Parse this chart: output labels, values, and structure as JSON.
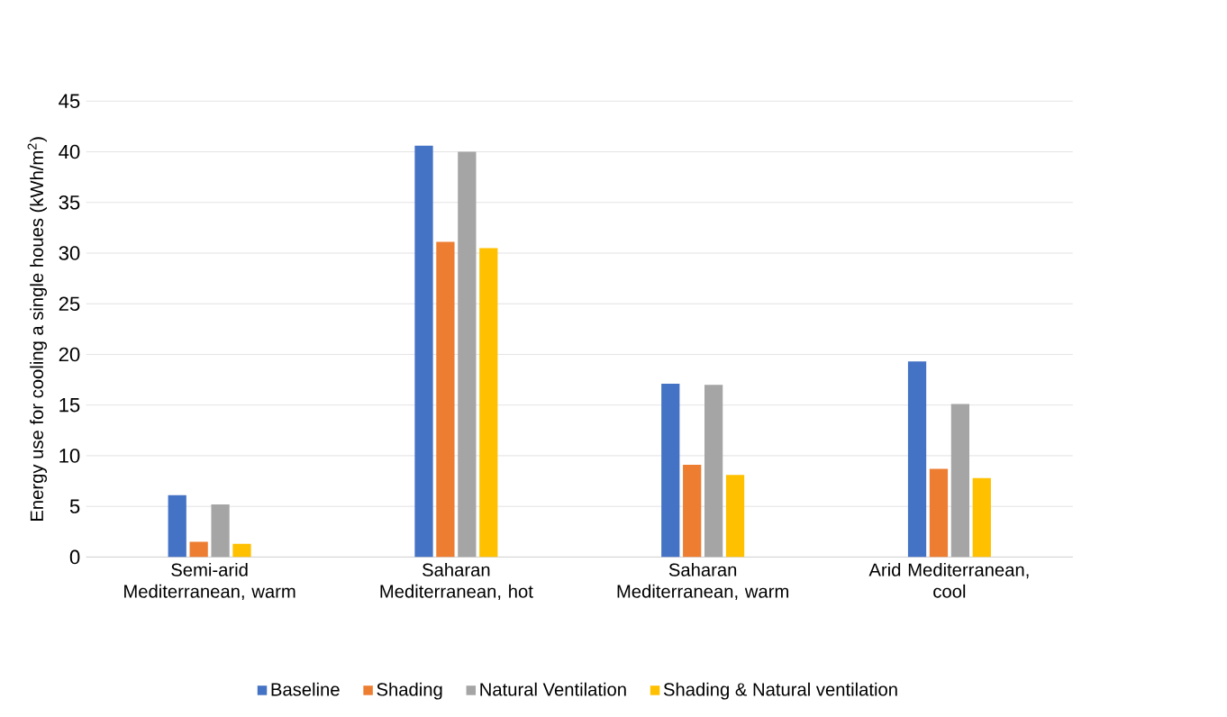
{
  "chart_data": {
    "type": "bar",
    "ylabel": "Energy use for cooling a single houes (kWh/m$^{2}$)",
    "categories": [
      "Semi-arid Mediterranean, warm",
      "Saharan Mediterranean, hot",
      "Saharan Mediterranean, warm",
      "Arid Mediterranean, cool"
    ],
    "series": [
      {
        "name": "Baseline",
        "color": "#4472c4",
        "values": [
          6.1,
          40.6,
          17.1,
          19.3
        ]
      },
      {
        "name": "Shading",
        "color": "#ed7d31",
        "values": [
          1.5,
          31.1,
          9.1,
          8.7
        ]
      },
      {
        "name": "Natural Ventilation",
        "color": "#a5a5a5",
        "values": [
          5.2,
          40.0,
          17.0,
          15.1
        ]
      },
      {
        "name": "Shading & Natural ventilation",
        "color": "#ffc000",
        "values": [
          1.3,
          30.5,
          8.1,
          7.8
        ]
      }
    ],
    "ylim": [
      0,
      45
    ],
    "yticks": [
      0,
      5,
      10,
      15,
      20,
      25,
      30,
      35,
      40,
      45
    ],
    "grid": "y",
    "legend": "bottom"
  }
}
